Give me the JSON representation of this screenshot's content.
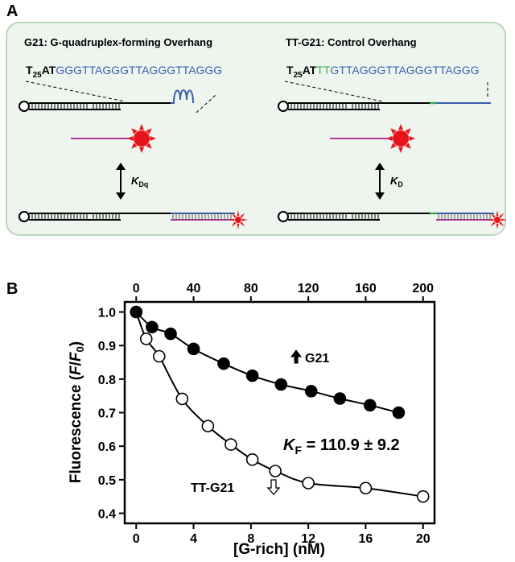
{
  "panel_labels": [
    "A",
    "B"
  ],
  "panel_a": {
    "left": {
      "title": "G21:  G-quadruplex-forming Overhang",
      "sequence": {
        "base": "T",
        "subscript": "25",
        "linker": "AT",
        "overhang": "GGGTTAGGGTTAGGGTTAGGG"
      },
      "constant": {
        "symbol": "K",
        "subscript": "Dq"
      }
    },
    "right": {
      "title": "TT-G21:  Control Overhang",
      "sequence": {
        "base": "T",
        "subscript": "25",
        "linker": "AT",
        "spacer": "TT",
        "overhang": "GTTAGGGTTAGGGTTAGGG"
      },
      "constant": {
        "symbol": "K",
        "subscript": "D"
      }
    }
  },
  "chart_data": {
    "type": "scatter",
    "x_label": "[G-rich] (nM)",
    "y_label": [
      "Fluorescence (",
      "F",
      "/",
      "F",
      "0",
      ")"
    ],
    "xlim": [
      -0.8,
      20.8
    ],
    "xticks": [
      0,
      4,
      8,
      12,
      16,
      20
    ],
    "x2lim": [
      -8,
      208
    ],
    "x2ticks": [
      0,
      40,
      80,
      120,
      160,
      200
    ],
    "ylim": [
      0.37,
      1.03
    ],
    "yticks": [
      {
        "value": 0.4,
        "label": "0.4"
      },
      {
        "value": 0.5,
        "label": "0.5"
      },
      {
        "value": 0.6,
        "label": "0.6"
      },
      {
        "value": 0.7,
        "label": "0.7"
      },
      {
        "value": 0.8,
        "label": "0.8"
      },
      {
        "value": 0.9,
        "label": "0.9"
      },
      {
        "value": 1.0,
        "label": "1.0"
      }
    ],
    "fit_label": {
      "symbol": "K",
      "subscript": "F",
      "text": " = 110.9 ± 9.2"
    },
    "series": [
      {
        "name": "G21",
        "axis": "x2",
        "color": "#000000",
        "fill": "#000000",
        "x": [
          0,
          11,
          24,
          40,
          61,
          81,
          101,
          122,
          142,
          163,
          183
        ],
        "values": [
          1.0,
          0.955,
          0.935,
          0.89,
          0.846,
          0.81,
          0.784,
          0.764,
          0.742,
          0.722,
          0.7
        ]
      },
      {
        "name": "TT-G21",
        "axis": "x",
        "color": "#000000",
        "fill": "#ffffff",
        "x": [
          0,
          0.7,
          1.6,
          3.2,
          5.0,
          6.6,
          8.1,
          9.7,
          12,
          16,
          20
        ],
        "values": [
          1.0,
          0.92,
          0.868,
          0.741,
          0.66,
          0.605,
          0.56,
          0.526,
          0.49,
          0.475,
          0.45
        ]
      }
    ]
  }
}
